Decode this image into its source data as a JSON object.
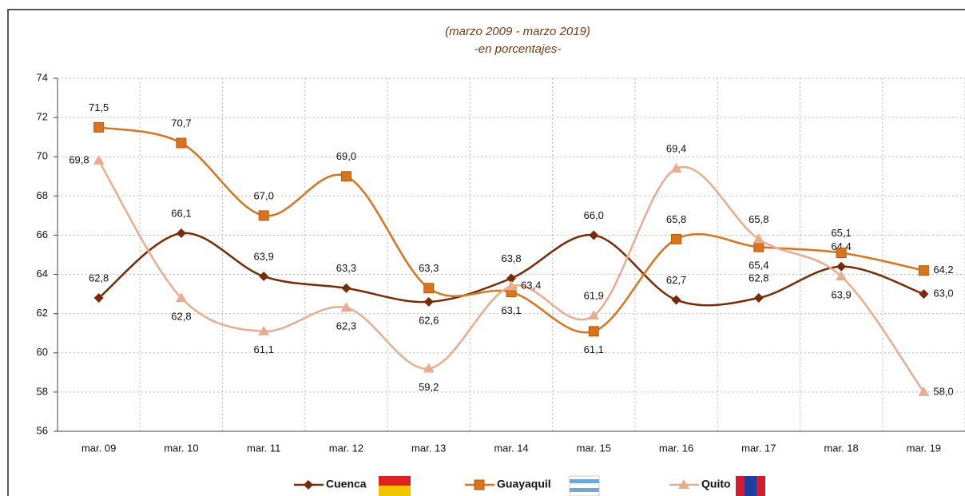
{
  "chart_data": {
    "type": "line",
    "title": "(marzo 2009 - marzo 2019)",
    "subtitle": "-en porcentajes-",
    "categories": [
      "mar. 09",
      "mar. 10",
      "mar. 11",
      "mar. 12",
      "mar. 13",
      "mar. 14",
      "mar. 15",
      "mar. 16",
      "mar. 17",
      "mar. 18",
      "mar. 19"
    ],
    "series": [
      {
        "name": "Cuenca",
        "color": "#7a2a05",
        "marker": "diamond",
        "values": [
          62.8,
          66.1,
          63.9,
          63.3,
          62.6,
          63.8,
          66.0,
          62.7,
          62.8,
          64.4,
          63.0
        ],
        "value_labels": [
          "62,8",
          "66,1",
          "63,9",
          "63,3",
          "62,6",
          "63,8",
          "66,0",
          "62,7",
          "62,8",
          "64,4",
          "63,0"
        ]
      },
      {
        "name": "Guayaquil",
        "color": "#d9731c",
        "marker": "square",
        "values": [
          71.5,
          70.7,
          67.0,
          69.0,
          63.3,
          63.1,
          61.1,
          65.8,
          65.4,
          65.1,
          64.2
        ],
        "value_labels": [
          "71,5",
          "70,7",
          "67,0",
          "69,0",
          "63,3",
          "63,1",
          "61,1",
          "65,8",
          "65,4",
          "65,1",
          "64,2"
        ]
      },
      {
        "name": "Quito",
        "color": "#e8ad90",
        "marker": "triangle",
        "values": [
          69.8,
          62.8,
          61.1,
          62.3,
          59.2,
          63.4,
          61.9,
          69.4,
          65.8,
          63.9,
          58.0
        ],
        "value_labels": [
          "69,8",
          "62,8",
          "61,1",
          "62,3",
          "59,2",
          "63,4",
          "61,9",
          "69,4",
          "65,8",
          "63,9",
          "58,0"
        ]
      }
    ],
    "ylim": [
      56,
      74
    ],
    "yticks": [
      56,
      58,
      60,
      62,
      64,
      66,
      68,
      70,
      72,
      74
    ],
    "grid": true,
    "legend": "bottom"
  }
}
